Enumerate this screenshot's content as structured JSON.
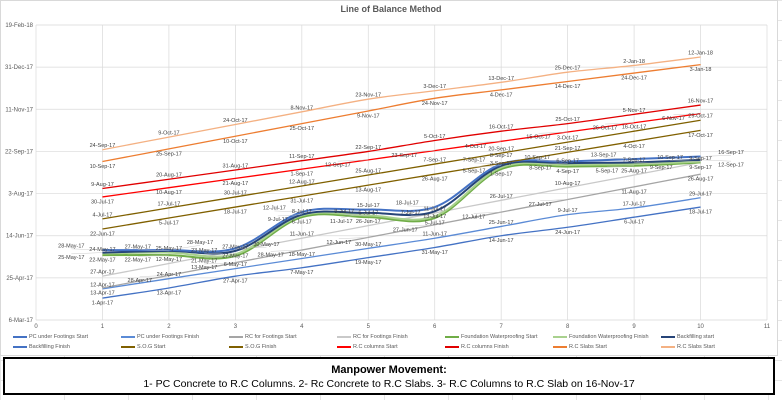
{
  "chart_data": {
    "type": "line",
    "title": "Line of Balance Method",
    "xlabel": "",
    "ylabel": "",
    "xlim": [
      0,
      11
    ],
    "x_ticks": [
      "0",
      "1",
      "2",
      "3",
      "4",
      "5",
      "6",
      "7",
      "8",
      "9",
      "10",
      "11"
    ],
    "ylim": [
      "6-Mar-17",
      "19-Feb-18"
    ],
    "y_ticks": [
      "6-Mar-17",
      "25-Apr-17",
      "14-Jun-17",
      "3-Aug-17",
      "22-Sep-17",
      "11-Nov-17",
      "31-Dec-17",
      "19-Feb-18"
    ],
    "grid": true,
    "legend_position": "bottom",
    "x": [
      1,
      2,
      3,
      4,
      5,
      6,
      7,
      8,
      9,
      10
    ],
    "series": [
      {
        "name": "PC under Footings Start",
        "color": "#4472C4",
        "values": [
          "1-Apr-17",
          "13-Apr-17",
          "27-Apr-17",
          "7-May-17",
          "19-May-17",
          "31-May-17",
          "14-Jun-17",
          "24-Jun-17",
          "6-Jul-17",
          "18-Jul-17"
        ]
      },
      {
        "name": "PC under Footings Finish",
        "color": "#5B8BD6",
        "values": [
          "12-Apr-17",
          "24-Apr-17",
          "6-May-17",
          "18-May-17",
          "30-May-17",
          "11-Jun-17",
          "25-Jun-17",
          "9-Jul-17",
          "17-Jul-17",
          "29-Jul-17"
        ]
      },
      {
        "name": "RC for Footings Start",
        "color": "#A5A5A5",
        "values": [
          "13-Apr-17",
          "28-Apr-17",
          "13-May-17",
          "28-May-17",
          "12-Jun-17",
          "27-Jun-17",
          "12-Jul-17",
          "27-Jul-17",
          "11-Aug-17",
          "26-Aug-17"
        ]
      },
      {
        "name": "RC for Footings Finish",
        "color": "#C9C9C9",
        "values": [
          "27-Apr-17",
          "12-May-17",
          "27-May-17",
          "11-Jun-17",
          "26-Jun-17",
          "11-Jul-17",
          "26-Jul-17",
          "10-Aug-17",
          "25-Aug-17",
          "9-Sep-17"
        ]
      },
      {
        "name": "Foundation Waterproofing Start",
        "color": "#70AD47",
        "values": [
          "22-May-17",
          "22-May-17",
          "21-May-17",
          "6-Jul-17",
          "6-Jul-17",
          "5-Jul-17",
          "1-Sep-17",
          "4-Sep-17",
          "5-Sep-17",
          "9-Sep-17"
        ]
      },
      {
        "name": "Foundation Waterproofing Finish",
        "color": "#A9D18E",
        "values": [
          "24-May-17",
          "25-May-17",
          "23-May-17",
          "8-Jul-17",
          "8-Jul-17",
          "7-Jul-17",
          "3-Sep-17",
          "6-Sep-17",
          "7-Sep-17",
          "10-Sep-17"
        ]
      },
      {
        "name": "Backfilling start",
        "color": "#264478",
        "values": [
          "25-May-17",
          "27-May-17",
          "27-May-17",
          "9-Jul-17",
          "11-Jul-17",
          "13-Jul-17",
          "5-Sep-17",
          "8-Sep-17",
          "9-Sep-17",
          "12-Sep-17"
        ]
      },
      {
        "name": "Backfilling Finish",
        "color": "#4472C4",
        "values": [
          "28-May-17",
          "28-May-17",
          "30-May-17",
          "12-Jul-17",
          "15-Jul-17",
          "18-Jul-17",
          "7-Sep-17",
          "10-Sep-17",
          "13-Sep-17",
          "16-Sep-17"
        ]
      },
      {
        "name": "S.O.G Start",
        "color": "#806000",
        "values": [
          "22-Jun-17",
          "5-Jul-17",
          "18-Jul-17",
          "31-Jul-17",
          "13-Aug-17",
          "26-Aug-17",
          "8-Sep-17",
          "21-Sep-17",
          "4-Oct-17",
          "17-Oct-17"
        ]
      },
      {
        "name": "S.O.G Finish",
        "color": "#7F6000",
        "values": [
          "4-Jul-17",
          "17-Jul-17",
          "30-Jul-17",
          "12-Aug-17",
          "25-Aug-17",
          "7-Sep-17",
          "20-Sep-17",
          "3-Oct-17",
          "16-Oct-17",
          "29-Oct-17"
        ]
      },
      {
        "name": "R.C columns Start",
        "color": "#FF0000",
        "values": [
          "30-Jul-17",
          "10-Aug-17",
          "21-Aug-17",
          "1-Sep-17",
          "12-Sep-17",
          "23-Sep-17",
          "4-Oct-17",
          "15-Oct-17",
          "26-Oct-17",
          "6-Nov-17"
        ]
      },
      {
        "name": "R.C columns Finish",
        "color": "#E00000",
        "values": [
          "9-Aug-17",
          "20-Aug-17",
          "31-Aug-17",
          "11-Sep-17",
          "22-Sep-17",
          "5-Oct-17",
          "16-Oct-17",
          "25-Oct-17",
          "5-Nov-17",
          "16-Nov-17"
        ]
      },
      {
        "name": "R.C Slabs Start",
        "color": "#ED7D31",
        "values": [
          "10-Sep-17",
          "25-Sep-17",
          "10-Oct-17",
          "25-Oct-17",
          "9-Nov-17",
          "24-Nov-17",
          "4-Dec-17",
          "14-Dec-17",
          "24-Dec-17",
          "3-Jan-18"
        ]
      },
      {
        "name": "R.C Slabs Start",
        "color": "#F4B183",
        "values": [
          "24-Sep-17",
          "9-Oct-17",
          "24-Oct-17",
          "8-Nov-17",
          "23-Nov-17",
          "3-Dec-17",
          "13-Dec-17",
          "25-Dec-17",
          "2-Jan-18",
          "12-Jan-18"
        ]
      }
    ]
  },
  "note": {
    "heading": "Manpower Movement:",
    "text": "1- PC Concrete to R.C Columns. 2- Rc Concrete to R.C Slabs. 3- R.C Columns to R.C Slab on 16-Nov-17"
  }
}
